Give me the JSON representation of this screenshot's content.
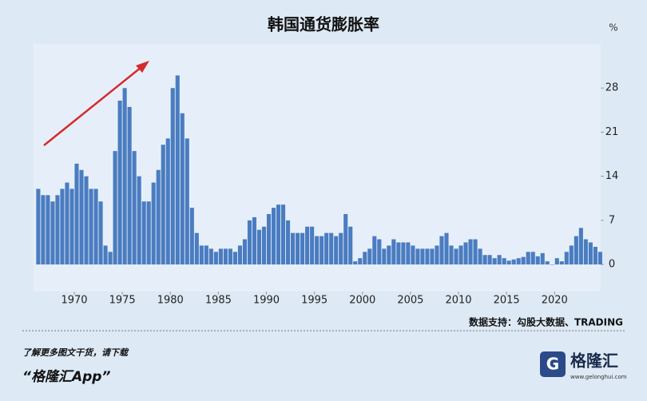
{
  "chart_data": {
    "type": "bar",
    "title": "韩国通货膨胀率",
    "y_unit": "%",
    "color": "#4a7cc0",
    "source": "数据支持：勾股大数据、TRADING",
    "x": [
      1966.25,
      1966.75,
      1967.25,
      1967.75,
      1968.25,
      1968.75,
      1969.25,
      1969.75,
      1970.25,
      1970.75,
      1971.25,
      1971.75,
      1972.25,
      1972.75,
      1973.25,
      1973.75,
      1974.25,
      1974.75,
      1975.25,
      1975.75,
      1976.25,
      1976.75,
      1977.25,
      1977.75,
      1978.25,
      1978.75,
      1979.25,
      1979.75,
      1980.25,
      1980.75,
      1981.25,
      1981.75,
      1982.25,
      1982.75,
      1983.25,
      1983.75,
      1984.25,
      1984.75,
      1985.25,
      1985.75,
      1986.25,
      1986.75,
      1987.25,
      1987.75,
      1988.25,
      1988.75,
      1989.25,
      1989.75,
      1990.25,
      1990.75,
      1991.25,
      1991.75,
      1992.25,
      1992.75,
      1993.25,
      1993.75,
      1994.25,
      1994.75,
      1995.25,
      1995.75,
      1996.25,
      1996.75,
      1997.25,
      1997.75,
      1998.25,
      1998.75,
      1999.25,
      1999.75,
      2000.25,
      2000.75,
      2001.25,
      2001.75,
      2002.25,
      2002.75,
      2003.25,
      2003.75,
      2004.25,
      2004.75,
      2005.25,
      2005.75,
      2006.25,
      2006.75,
      2007.25,
      2007.75,
      2008.25,
      2008.75,
      2009.25,
      2009.75,
      2010.25,
      2010.75,
      2011.25,
      2011.75,
      2012.25,
      2012.75,
      2013.25,
      2013.75,
      2014.25,
      2014.75,
      2015.25,
      2015.75,
      2016.25,
      2016.75,
      2017.25,
      2017.75,
      2018.25,
      2018.75,
      2019.25,
      2019.75,
      2020.25,
      2020.75,
      2021.25,
      2021.75,
      2022.25,
      2022.75,
      2023.25,
      2023.75,
      2024.25,
      2024.75
    ],
    "values": [
      12,
      11,
      11,
      10,
      11,
      12,
      13,
      12,
      16,
      15,
      14,
      12,
      12,
      10,
      3,
      2,
      18,
      26,
      28,
      25,
      18,
      14,
      10,
      10,
      13,
      15,
      19,
      20,
      28,
      30,
      24,
      20,
      9,
      5,
      3,
      3,
      2.5,
      2,
      2.5,
      2.5,
      2.5,
      2,
      3,
      4,
      7,
      7.5,
      5.5,
      6,
      8,
      9,
      9.5,
      9.5,
      7,
      5,
      5,
      5,
      6,
      6,
      4.5,
      4.5,
      5,
      5,
      4.5,
      5,
      8,
      6,
      0.5,
      1,
      2,
      2.5,
      4.5,
      4,
      2.5,
      3,
      4,
      3.5,
      3.5,
      3.5,
      3,
      2.5,
      2.5,
      2.5,
      2.5,
      3,
      4.5,
      5,
      3,
      2.5,
      3,
      3.5,
      4,
      4,
      2.5,
      1.5,
      1.5,
      1,
      1.5,
      1,
      0.6,
      0.8,
      1,
      1.2,
      2,
      2,
      1.3,
      1.8,
      0.5,
      0,
      1,
      0.5,
      2,
      3,
      4.5,
      5.8,
      4,
      3.5,
      2.8,
      2
    ],
    "xlim": [
      1965.76,
      2024.8
    ],
    "xticks": [
      1970,
      1975,
      1980,
      1985,
      1990,
      1995,
      2000,
      2005,
      2010,
      2015,
      2020
    ],
    "ylim": [
      -4.3,
      35
    ],
    "yticks": [
      0,
      7,
      14,
      21,
      28
    ]
  },
  "footer": {
    "line1": "了解更多图文干货，请下载",
    "line2": "“格隆汇App”",
    "logo": "格隆汇",
    "url": "www.gelonghui.com"
  }
}
